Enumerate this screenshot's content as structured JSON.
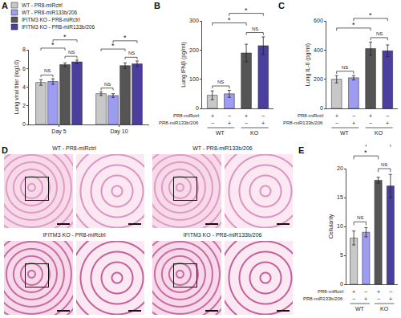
{
  "chart_data": [
    {
      "panel": "A",
      "type": "bar",
      "categories": [
        "Day 5",
        "Day 10"
      ],
      "ylabel": "Lung viral titer (log10)",
      "ylim": [
        0,
        8
      ],
      "yticks": [
        0,
        2,
        4,
        6,
        8
      ],
      "legend": "top",
      "series": [
        {
          "name": "WT - PR8-miRctrl",
          "color": "#c8c8c8",
          "values": [
            4.5,
            3.3
          ],
          "errors": [
            0.3,
            0.2
          ]
        },
        {
          "name": "WT - PR8-miR133b/206",
          "color": "#9d9cf0",
          "values": [
            4.6,
            3.1
          ],
          "errors": [
            0.3,
            0.2
          ]
        },
        {
          "name": "IFITM3 KO - PR8-miRctrl",
          "color": "#555555",
          "values": [
            6.4,
            6.3
          ],
          "errors": [
            0.2,
            0.3
          ]
        },
        {
          "name": "IFITM3 KO - PR8-miR133b/206",
          "color": "#4b3f9e",
          "values": [
            6.7,
            6.5
          ],
          "errors": [
            0.2,
            0.3
          ]
        }
      ],
      "comparisons": [
        {
          "category": 0,
          "from": 0,
          "to": 1,
          "label": "NS"
        },
        {
          "category": 0,
          "from": 2,
          "to": 3,
          "label": "NS"
        },
        {
          "category": 0,
          "from": 0,
          "to": 2,
          "label": "*"
        },
        {
          "category": 0,
          "from": 1,
          "to": 3,
          "label": "*"
        },
        {
          "category": 1,
          "from": 0,
          "to": 1,
          "label": "NS"
        },
        {
          "category": 1,
          "from": 2,
          "to": 3,
          "label": "NS"
        },
        {
          "category": 1,
          "from": 0,
          "to": 2,
          "label": "*"
        },
        {
          "category": 1,
          "from": 1,
          "to": 3,
          "label": "*"
        }
      ]
    },
    {
      "panel": "B",
      "type": "bar",
      "ylabel": "Lung IFNβ (pg/ml)",
      "ylim": [
        0,
        300
      ],
      "yticks": [
        0,
        100,
        200,
        300
      ],
      "tick_labels": "y",
      "values": [
        45,
        50,
        190,
        215
      ],
      "errors": [
        15,
        12,
        30,
        30
      ],
      "colors": [
        "#c8c8c8",
        "#9d9cf0",
        "#555555",
        "#4b3f9e"
      ],
      "conditions": [
        {
          "label": "PR8-miRctrl",
          "marks": [
            "+",
            "−",
            "+",
            "−"
          ]
        },
        {
          "label": "PR8-miR133b/206",
          "marks": [
            "−",
            "+",
            "−",
            "+"
          ]
        }
      ],
      "groups": [
        {
          "label": "WT",
          "from": 0,
          "to": 1
        },
        {
          "label": "KO",
          "from": 2,
          "to": 3
        }
      ],
      "comparisons": [
        {
          "from": 0,
          "to": 1,
          "label": "NS"
        },
        {
          "from": 2,
          "to": 3,
          "label": "NS"
        },
        {
          "from": 0,
          "to": 2,
          "label": "*"
        },
        {
          "from": 1,
          "to": 3,
          "label": "*"
        }
      ]
    },
    {
      "panel": "C",
      "type": "bar",
      "ylabel": "Lung IL-6 (pg/ml)",
      "ylim": [
        0,
        600
      ],
      "yticks": [
        0,
        200,
        400,
        600
      ],
      "tick_labels": "y",
      "values": [
        200,
        210,
        410,
        395
      ],
      "errors": [
        25,
        15,
        45,
        40
      ],
      "colors": [
        "#c8c8c8",
        "#9d9cf0",
        "#555555",
        "#4b3f9e"
      ],
      "conditions": [
        {
          "label": "PR8-miRctrl",
          "marks": [
            "+",
            "−",
            "+",
            "−"
          ]
        },
        {
          "label": "PR8-miR133b/206",
          "marks": [
            "−",
            "+",
            "−",
            "+"
          ]
        }
      ],
      "groups": [
        {
          "label": "WT",
          "from": 0,
          "to": 1
        },
        {
          "label": "KO",
          "from": 2,
          "to": 3
        }
      ],
      "comparisons": [
        {
          "from": 0,
          "to": 1,
          "label": "NS"
        },
        {
          "from": 2,
          "to": 3,
          "label": "NS"
        },
        {
          "from": 0,
          "to": 2,
          "label": "*"
        },
        {
          "from": 1,
          "to": 3,
          "label": "*"
        }
      ]
    },
    {
      "panel": "D",
      "type": "image_grid",
      "images": [
        {
          "title": "WT - PR8-miRctrl"
        },
        {
          "title": "WT - PR8-miR133b/206"
        },
        {
          "title": "IFITM3 KO - PR8-miRctrl"
        },
        {
          "title": "IFITM3 KO - PR8-miR133b/206"
        }
      ]
    },
    {
      "panel": "E",
      "type": "bar",
      "ylabel": "Cellularity",
      "ylim": [
        0,
        20
      ],
      "yticks": [
        0,
        5,
        10,
        15,
        20
      ],
      "tick_labels": "y",
      "values": [
        8,
        9,
        18,
        17
      ],
      "errors": [
        1.2,
        0.8,
        0.5,
        2
      ],
      "colors": [
        "#c8c8c8",
        "#9d9cf0",
        "#555555",
        "#4b3f9e"
      ],
      "conditions": [
        {
          "label": "PR8-miRctrl",
          "marks": [
            "+",
            "−",
            "+",
            "−"
          ]
        },
        {
          "label": "PR8-miR133b/206",
          "marks": [
            "−",
            "+",
            "−",
            "+"
          ]
        }
      ],
      "groups": [
        {
          "label": "WT",
          "from": 0,
          "to": 1
        },
        {
          "label": "KO",
          "from": 2,
          "to": 3
        }
      ],
      "comparisons": [
        {
          "from": 0,
          "to": 1,
          "label": "NS"
        },
        {
          "from": 2,
          "to": 3,
          "label": "NS"
        },
        {
          "from": 0,
          "to": 2,
          "label": "*"
        },
        {
          "from": 1,
          "to": 3,
          "label": "*"
        }
      ]
    }
  ]
}
